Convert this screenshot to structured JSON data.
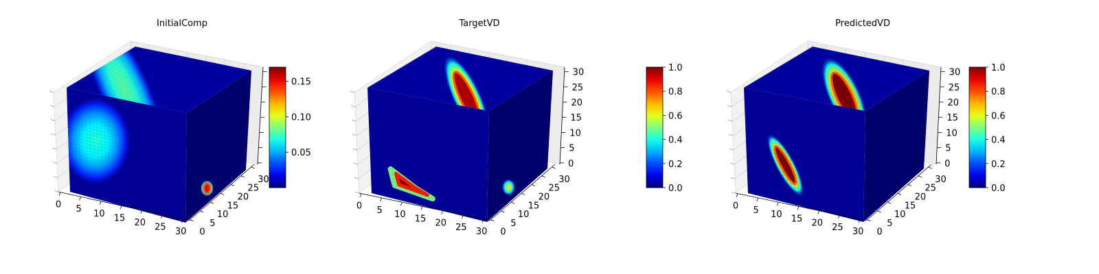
{
  "chart_data": [
    {
      "type": "3d-voxel",
      "title": "InitialComp",
      "axes": {
        "x_ticks": [
          "0",
          "5",
          "10",
          "15",
          "20",
          "25",
          "30"
        ],
        "y_ticks": [
          "0",
          "5",
          "10",
          "15",
          "20",
          "25",
          "30"
        ],
        "z_ticks": [],
        "xlim": [
          0,
          32
        ],
        "ylim": [
          0,
          32
        ],
        "zlim": [
          0,
          32
        ]
      },
      "colorbar": {
        "colormap": "jet",
        "range": [
          0.0,
          0.17
        ],
        "ticks": [
          "0.05",
          "0.10",
          "0.15"
        ],
        "tick_values": [
          0.05,
          0.1,
          0.15
        ]
      },
      "features": [
        {
          "face": "front",
          "cx": 0.23,
          "cy": 0.45,
          "rx": 0.24,
          "ry": 0.35,
          "value": 0.07
        },
        {
          "face": "top",
          "cx": 0.22,
          "cy": 0.35,
          "rx": 0.26,
          "ry": 0.55,
          "value": 0.08
        },
        {
          "face": "side",
          "cx": 0.35,
          "cy": 0.85,
          "rx": 0.07,
          "ry": 0.06,
          "value": 0.15
        }
      ]
    },
    {
      "type": "3d-voxel",
      "title": "TargetVD",
      "axes": {
        "x_ticks": [
          "0",
          "5",
          "10",
          "15",
          "20",
          "25",
          "30"
        ],
        "y_ticks": [
          "0",
          "5",
          "10",
          "15",
          "20",
          "25",
          "30"
        ],
        "z_ticks": [
          "0",
          "5",
          "10",
          "15",
          "20",
          "25",
          "30"
        ],
        "xlim": [
          0,
          32
        ],
        "ylim": [
          0,
          32
        ],
        "zlim": [
          0,
          32
        ]
      },
      "colorbar": {
        "colormap": "jet",
        "range": [
          0.0,
          1.0
        ],
        "ticks": [
          "0.0",
          "0.2",
          "0.4",
          "0.6",
          "0.8",
          "1.0"
        ],
        "tick_values": [
          0.0,
          0.2,
          0.4,
          0.6,
          0.8,
          1.0
        ]
      },
      "features": [
        {
          "face": "front",
          "cx": 0.35,
          "cy": 0.82,
          "rx": 0.17,
          "ry": 0.14,
          "value": 1.0,
          "shape": "triangle"
        },
        {
          "face": "top",
          "cx": 0.18,
          "cy": 0.72,
          "rx": 0.14,
          "ry": 0.3,
          "value": 0.95
        },
        {
          "face": "side",
          "cx": 0.35,
          "cy": 0.85,
          "rx": 0.07,
          "ry": 0.06,
          "value": 0.6
        }
      ]
    },
    {
      "type": "3d-voxel",
      "title": "PredictedVD",
      "axes": {
        "x_ticks": [
          "0",
          "5",
          "10",
          "15",
          "20",
          "25",
          "30"
        ],
        "y_ticks": [
          "0",
          "5",
          "10",
          "15",
          "20",
          "25",
          "30"
        ],
        "z_ticks": [
          "0",
          "5",
          "10",
          "15",
          "20",
          "25",
          "30"
        ],
        "xlim": [
          0,
          32
        ],
        "ylim": [
          0,
          32
        ],
        "zlim": [
          0,
          32
        ]
      },
      "colorbar": {
        "colormap": "jet",
        "range": [
          0.0,
          1.0
        ],
        "ticks": [
          "0.0",
          "0.2",
          "0.4",
          "0.6",
          "0.8",
          "1.0"
        ],
        "tick_values": [
          0.0,
          0.2,
          0.4,
          0.6,
          0.8,
          1.0
        ]
      },
      "features": [
        {
          "face": "front",
          "cx": 0.33,
          "cy": 0.65,
          "rx": 0.06,
          "ry": 0.27,
          "value": 1.0,
          "angle": -28
        },
        {
          "face": "top",
          "cx": 0.2,
          "cy": 0.72,
          "rx": 0.16,
          "ry": 0.28,
          "value": 1.0
        }
      ]
    }
  ]
}
